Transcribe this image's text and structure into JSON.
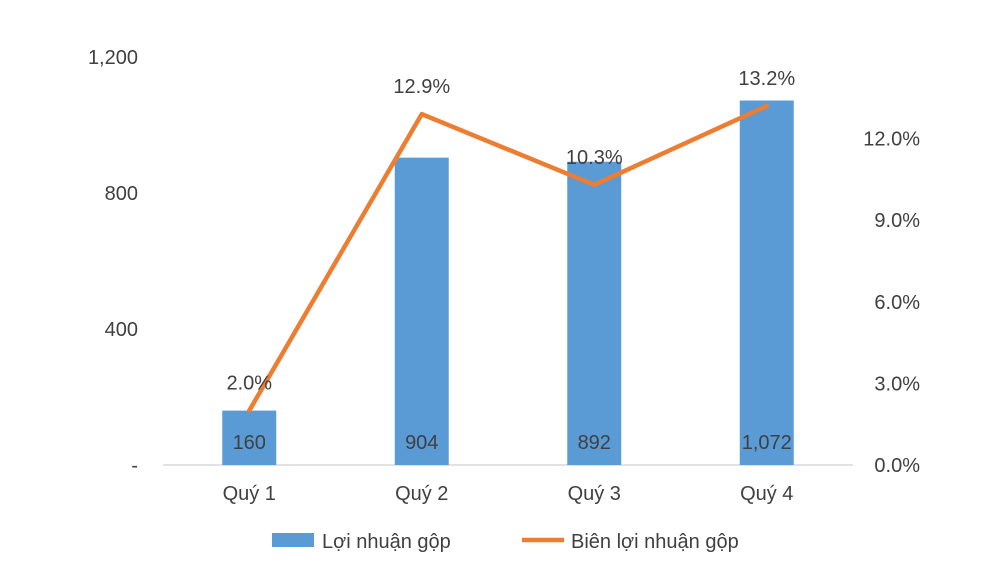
{
  "chart_data": {
    "type": "bar",
    "categories": [
      "Quý 1",
      "Quý 2",
      "Quý 3",
      "Quý 4"
    ],
    "series": [
      {
        "name": "Lợi nhuận gộp",
        "type": "bar",
        "axis": "left",
        "values": [
          160,
          904,
          892,
          1072
        ],
        "labels": [
          "160",
          "904",
          "892",
          "1,072"
        ],
        "color": "#5B9BD5"
      },
      {
        "name": "Biên lợi nhuận gộp",
        "type": "line",
        "axis": "right",
        "values": [
          2.0,
          12.9,
          10.3,
          13.2
        ],
        "labels": [
          "2.0%",
          "12.9%",
          "10.3%",
          "13.2%"
        ],
        "color": "#ED7D31"
      }
    ],
    "y_left": {
      "range": [
        0,
        1200
      ],
      "ticks": [
        {
          "value": 0,
          "label": "-"
        },
        {
          "value": 400,
          "label": "400"
        },
        {
          "value": 800,
          "label": "800"
        },
        {
          "value": 1200,
          "label": "1,200"
        }
      ]
    },
    "y_right": {
      "range": [
        0,
        15
      ],
      "ticks": [
        {
          "value": 0,
          "label": "0.0%"
        },
        {
          "value": 3,
          "label": "3.0%"
        },
        {
          "value": 6,
          "label": "6.0%"
        },
        {
          "value": 9,
          "label": "9.0%"
        },
        {
          "value": 12,
          "label": "12.0%"
        }
      ]
    },
    "grid": false,
    "legend_position": "bottom"
  }
}
